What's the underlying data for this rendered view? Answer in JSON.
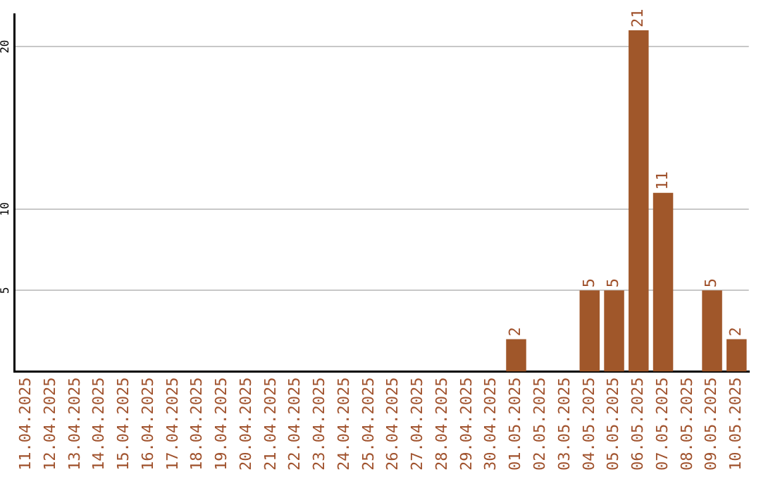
{
  "chart_data": {
    "type": "bar",
    "categories": [
      "11.04.2025",
      "12.04.2025",
      "13.04.2025",
      "14.04.2025",
      "15.04.2025",
      "16.04.2025",
      "17.04.2025",
      "18.04.2025",
      "19.04.2025",
      "20.04.2025",
      "21.04.2025",
      "22.04.2025",
      "23.04.2025",
      "24.04.2025",
      "25.04.2025",
      "26.04.2025",
      "27.04.2025",
      "28.04.2025",
      "29.04.2025",
      "30.04.2025",
      "01.05.2025",
      "02.05.2025",
      "03.05.2025",
      "04.05.2025",
      "05.05.2025",
      "06.05.2025",
      "07.05.2025",
      "08.05.2025",
      "09.05.2025",
      "10.05.2025"
    ],
    "values": [
      0,
      0,
      0,
      0,
      0,
      0,
      0,
      0,
      0,
      0,
      0,
      0,
      0,
      0,
      0,
      0,
      0,
      0,
      0,
      0,
      2,
      0,
      0,
      5,
      5,
      21,
      11,
      0,
      5,
      2
    ],
    "value_labels": [
      null,
      null,
      null,
      null,
      null,
      null,
      null,
      null,
      null,
      null,
      null,
      null,
      null,
      null,
      null,
      null,
      null,
      null,
      null,
      null,
      "2",
      null,
      null,
      "5",
      "5",
      "21",
      "11",
      null,
      "5",
      "2"
    ],
    "color": "#a0572a",
    "ylim": [
      0,
      22
    ],
    "yticks": [
      5,
      10,
      20
    ],
    "grid": "y"
  }
}
